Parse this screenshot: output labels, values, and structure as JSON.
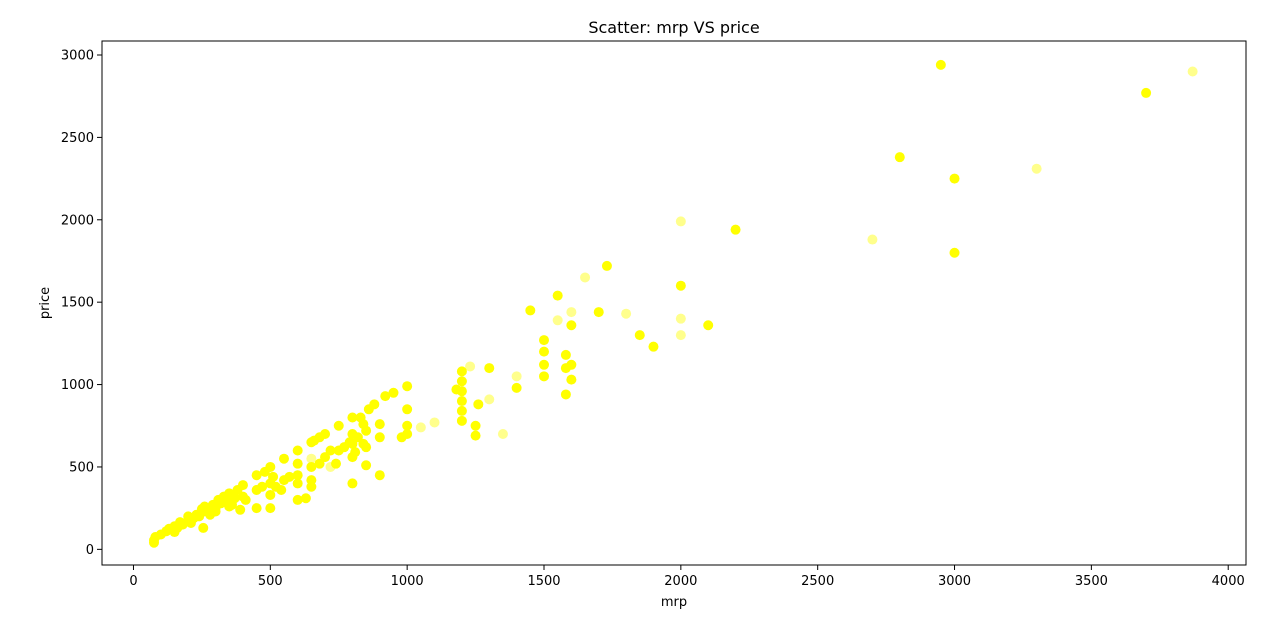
{
  "chart_data": {
    "type": "scatter",
    "title": "Scatter: mrp VS price",
    "xlabel": "mrp",
    "ylabel": "price",
    "xlim": [
      -115,
      4065
    ],
    "ylim": [
      -95,
      3085
    ],
    "xticks": [
      0,
      500,
      1000,
      1500,
      2000,
      2500,
      3000,
      3500,
      4000
    ],
    "yticks": [
      0,
      500,
      1000,
      1500,
      2000,
      2500,
      3000
    ],
    "grid": false,
    "point_color": "#ffff00",
    "points": [
      [
        75,
        40,
        1
      ],
      [
        75,
        55,
        1
      ],
      [
        80,
        75,
        1
      ],
      [
        100,
        90,
        1
      ],
      [
        120,
        110,
        1
      ],
      [
        130,
        125,
        1
      ],
      [
        150,
        105,
        1
      ],
      [
        150,
        140,
        1
      ],
      [
        160,
        130,
        1
      ],
      [
        170,
        165,
        1
      ],
      [
        180,
        150,
        1
      ],
      [
        200,
        175,
        1
      ],
      [
        200,
        200,
        1
      ],
      [
        210,
        160,
        1
      ],
      [
        220,
        190,
        1
      ],
      [
        230,
        210,
        1
      ],
      [
        240,
        200,
        1
      ],
      [
        250,
        225,
        1
      ],
      [
        250,
        245,
        1
      ],
      [
        255,
        130,
        1
      ],
      [
        260,
        260,
        1
      ],
      [
        270,
        230,
        1
      ],
      [
        280,
        210,
        1
      ],
      [
        290,
        270,
        1
      ],
      [
        300,
        230,
        1
      ],
      [
        300,
        250,
        1
      ],
      [
        310,
        300,
        1
      ],
      [
        320,
        280,
        1
      ],
      [
        330,
        320,
        1
      ],
      [
        340,
        300,
        1
      ],
      [
        350,
        260,
        1
      ],
      [
        350,
        340,
        1
      ],
      [
        360,
        270,
        1
      ],
      [
        370,
        310,
        1
      ],
      [
        380,
        360,
        1
      ],
      [
        390,
        240,
        1
      ],
      [
        400,
        320,
        1
      ],
      [
        400,
        390,
        1
      ],
      [
        410,
        300,
        1
      ],
      [
        450,
        250,
        1
      ],
      [
        450,
        360,
        1
      ],
      [
        450,
        450,
        1
      ],
      [
        470,
        380,
        1
      ],
      [
        480,
        470,
        1
      ],
      [
        500,
        250,
        1
      ],
      [
        500,
        330,
        1
      ],
      [
        500,
        400,
        1
      ],
      [
        500,
        500,
        1
      ],
      [
        510,
        440,
        1
      ],
      [
        520,
        380,
        1
      ],
      [
        540,
        360,
        1
      ],
      [
        550,
        420,
        1
      ],
      [
        550,
        550,
        1
      ],
      [
        570,
        440,
        1
      ],
      [
        600,
        300,
        1
      ],
      [
        600,
        400,
        1
      ],
      [
        600,
        450,
        1
      ],
      [
        600,
        520,
        1
      ],
      [
        600,
        600,
        1
      ],
      [
        630,
        310,
        1
      ],
      [
        650,
        380,
        1
      ],
      [
        650,
        420,
        1
      ],
      [
        650,
        500,
        1
      ],
      [
        650,
        550,
        0.5
      ],
      [
        650,
        650,
        1
      ],
      [
        660,
        660,
        1
      ],
      [
        680,
        520,
        1
      ],
      [
        680,
        680,
        1
      ],
      [
        700,
        560,
        1
      ],
      [
        700,
        700,
        1
      ],
      [
        720,
        500,
        0.5
      ],
      [
        720,
        600,
        1
      ],
      [
        740,
        520,
        1
      ],
      [
        750,
        600,
        1
      ],
      [
        750,
        750,
        1
      ],
      [
        770,
        620,
        1
      ],
      [
        790,
        650,
        1
      ],
      [
        800,
        400,
        1
      ],
      [
        800,
        560,
        1
      ],
      [
        800,
        640,
        1
      ],
      [
        800,
        700,
        1
      ],
      [
        800,
        800,
        1
      ],
      [
        810,
        590,
        1
      ],
      [
        820,
        680,
        1
      ],
      [
        830,
        800,
        1
      ],
      [
        840,
        640,
        1
      ],
      [
        840,
        760,
        1
      ],
      [
        850,
        510,
        1
      ],
      [
        850,
        620,
        1
      ],
      [
        850,
        720,
        1
      ],
      [
        860,
        850,
        1
      ],
      [
        880,
        880,
        1
      ],
      [
        900,
        450,
        1
      ],
      [
        900,
        680,
        1
      ],
      [
        900,
        760,
        1
      ],
      [
        920,
        930,
        1
      ],
      [
        950,
        950,
        1
      ],
      [
        980,
        680,
        1
      ],
      [
        1000,
        700,
        1
      ],
      [
        1000,
        750,
        1
      ],
      [
        1000,
        850,
        1
      ],
      [
        1000,
        990,
        1
      ],
      [
        1050,
        740,
        0.5
      ],
      [
        1100,
        770,
        0.5
      ],
      [
        1180,
        970,
        1
      ],
      [
        1200,
        780,
        1
      ],
      [
        1200,
        840,
        1
      ],
      [
        1200,
        900,
        1
      ],
      [
        1200,
        960,
        1
      ],
      [
        1200,
        1020,
        1
      ],
      [
        1200,
        1080,
        1
      ],
      [
        1230,
        1110,
        0.5
      ],
      [
        1250,
        690,
        1
      ],
      [
        1250,
        750,
        1
      ],
      [
        1260,
        880,
        1
      ],
      [
        1300,
        910,
        0.5
      ],
      [
        1300,
        1100,
        1
      ],
      [
        1350,
        700,
        0.5
      ],
      [
        1400,
        980,
        1
      ],
      [
        1400,
        1050,
        0.5
      ],
      [
        1450,
        1450,
        1
      ],
      [
        1500,
        1050,
        1
      ],
      [
        1500,
        1120,
        1
      ],
      [
        1500,
        1200,
        1
      ],
      [
        1500,
        1270,
        1
      ],
      [
        1550,
        1390,
        0.5
      ],
      [
        1550,
        1540,
        1
      ],
      [
        1580,
        940,
        1
      ],
      [
        1580,
        1100,
        1
      ],
      [
        1580,
        1180,
        1
      ],
      [
        1600,
        1030,
        1
      ],
      [
        1600,
        1120,
        1
      ],
      [
        1600,
        1360,
        1
      ],
      [
        1600,
        1440,
        0.5
      ],
      [
        1650,
        1650,
        0.5
      ],
      [
        1700,
        1440,
        1
      ],
      [
        1730,
        1720,
        1
      ],
      [
        1800,
        1430,
        0.5
      ],
      [
        1850,
        1300,
        1
      ],
      [
        1900,
        1230,
        1
      ],
      [
        2000,
        1300,
        0.5
      ],
      [
        2000,
        1400,
        0.5
      ],
      [
        2000,
        1600,
        1
      ],
      [
        2000,
        1990,
        0.5
      ],
      [
        2100,
        1360,
        1
      ],
      [
        2200,
        1940,
        1
      ],
      [
        2700,
        1880,
        0.5
      ],
      [
        2800,
        2380,
        1
      ],
      [
        2950,
        2940,
        1
      ],
      [
        3000,
        1800,
        1
      ],
      [
        3000,
        2250,
        1
      ],
      [
        3300,
        2310,
        0.5
      ],
      [
        3700,
        2770,
        1
      ],
      [
        3870,
        2900,
        0.5
      ]
    ]
  }
}
